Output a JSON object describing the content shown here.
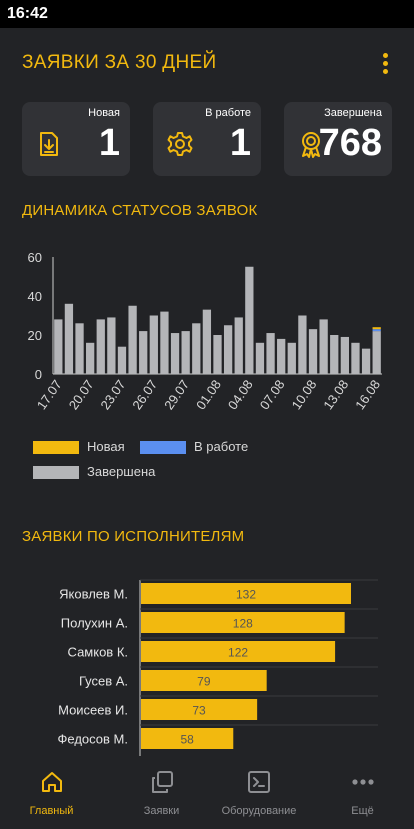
{
  "status_bar": {
    "time": "16:42"
  },
  "header": {
    "title": "ЗАЯВКИ ЗА 30 ДНЕЙ",
    "menu_icon": "more-vert-icon"
  },
  "colors": {
    "accent": "#f2b90f",
    "in_work": "#5b8ff0",
    "done": "#b4b5b8",
    "background": "#222326",
    "card": "#313236"
  },
  "cards": [
    {
      "label": "Новая",
      "value": "1",
      "icon": "download-file-icon"
    },
    {
      "label": "В работе",
      "value": "1",
      "icon": "gear-icon"
    },
    {
      "label": "Завершена",
      "value": "768",
      "icon": "award-badge-icon"
    }
  ],
  "dynamics": {
    "title": "ДИНАМИКА СТАТУСОВ ЗАЯВОК",
    "legend": [
      {
        "label": "Новая",
        "color": "#f2b90f"
      },
      {
        "label": "В работе",
        "color": "#5b8ff0"
      },
      {
        "label": "Завершена",
        "color": "#b4b5b8"
      }
    ]
  },
  "executors": {
    "title": "ЗАЯВКИ ПО ИСПОЛНИТЕЛЯМ"
  },
  "chart_data": [
    {
      "type": "bar",
      "stacked": true,
      "categories": [
        "17.07",
        "18.07",
        "19.07",
        "20.07",
        "21.07",
        "22.07",
        "23.07",
        "24.07",
        "25.07",
        "26.07",
        "27.07",
        "28.07",
        "29.07",
        "30.07",
        "31.07",
        "01.08",
        "02.08",
        "03.08",
        "04.08",
        "05.08",
        "06.08",
        "07.08",
        "08.08",
        "09.08",
        "10.08",
        "11.08",
        "12.08",
        "13.08",
        "14.08",
        "15.08",
        "16.08"
      ],
      "tick_labels": [
        "17.07",
        "20.07",
        "23.07",
        "26.07",
        "29.07",
        "01.08",
        "04.08",
        "07.08",
        "10.08",
        "13.08",
        "16.08"
      ],
      "series": [
        {
          "name": "Новая",
          "color": "#f2b90f",
          "values": [
            0,
            0,
            0,
            0,
            0,
            0,
            0,
            0,
            0,
            0,
            0,
            0,
            0,
            0,
            0,
            0,
            0,
            0,
            0,
            0,
            0,
            0,
            0,
            0,
            0,
            0,
            0,
            0,
            0,
            0,
            1
          ]
        },
        {
          "name": "В работе",
          "color": "#5b8ff0",
          "values": [
            0,
            0,
            0,
            0,
            0,
            0,
            0,
            0,
            0,
            0,
            0,
            0,
            0,
            0,
            0,
            0,
            0,
            0,
            0,
            0,
            0,
            0,
            0,
            0,
            0,
            0,
            0,
            0,
            0,
            0,
            1
          ]
        },
        {
          "name": "Завершена",
          "color": "#b4b5b8",
          "values": [
            28,
            36,
            26,
            16,
            28,
            29,
            14,
            35,
            22,
            30,
            32,
            21,
            22,
            26,
            33,
            20,
            25,
            29,
            55,
            16,
            21,
            18,
            16,
            30,
            23,
            28,
            20,
            19,
            16,
            13,
            22
          ]
        }
      ],
      "yticks": [
        0,
        20,
        40,
        60
      ],
      "ylim": [
        0,
        60
      ],
      "grid": false,
      "legend_position": "bottom"
    },
    {
      "type": "bar",
      "orientation": "horizontal",
      "categories": [
        "Яковлев М.",
        "Полухин А.",
        "Самков К.",
        "Гусев А.",
        "Моисеев И.",
        "Федосов М."
      ],
      "values": [
        132,
        128,
        122,
        79,
        73,
        58
      ],
      "color": "#f2b90f",
      "grid": true
    }
  ],
  "bottom_nav": [
    {
      "label": "Главный",
      "icon": "home-icon",
      "active": true
    },
    {
      "label": "Заявки",
      "icon": "copy-icon",
      "active": false
    },
    {
      "label": "Оборудование",
      "icon": "terminal-icon",
      "active": false
    },
    {
      "label": "Ещё",
      "icon": "more-horiz-icon",
      "active": false
    }
  ]
}
